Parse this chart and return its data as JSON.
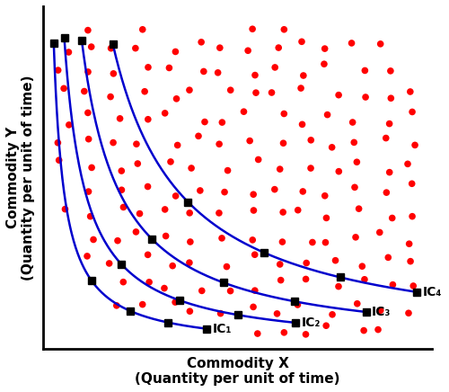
{
  "xlabel": "Commodity X\n(Quantity per unit of time)",
  "ylabel": "Commodity Y\n(Quantity per unit of time)",
  "curve_color": "#0000CD",
  "curve_linewidth": 1.8,
  "marker_color": "black",
  "marker_size": 6,
  "dot_color": "#FF0000",
  "dot_size": 30,
  "background_color": "#FFFFFF",
  "ic_labels": [
    "IC₁",
    "IC₂",
    "IC₃",
    "IC₄"
  ],
  "curve_constants": [
    0.045,
    0.1,
    0.18,
    0.3
  ],
  "xlim": [
    0,
    10
  ],
  "ylim": [
    0,
    10
  ],
  "label_fontsize": 10,
  "axis_label_fontsize": 11
}
